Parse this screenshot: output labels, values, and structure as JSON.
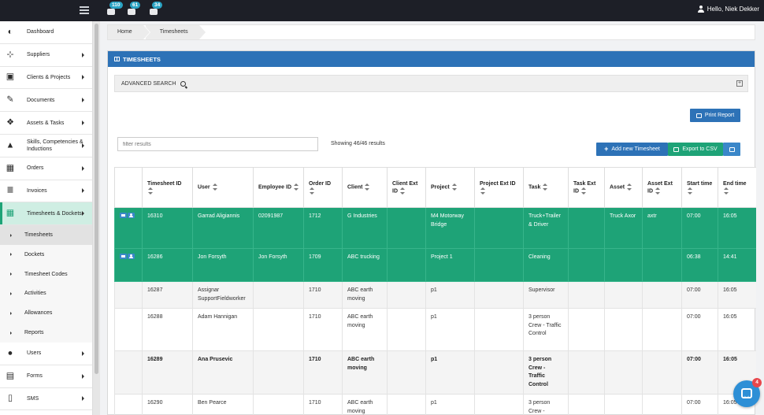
{
  "topbar": {
    "notifications": [
      {
        "icon": "users-icon",
        "count": "110"
      },
      {
        "icon": "cubes-icon",
        "count": "61"
      },
      {
        "icon": "envelope-icon",
        "count": "34"
      }
    ],
    "greeting": "Hello, Niek Dekker"
  },
  "sidebar": {
    "items": [
      {
        "label": "Dashboard",
        "icon": "dashboard-icon",
        "glyph": "◐"
      },
      {
        "label": "Suppliers",
        "icon": "sitemap-icon",
        "glyph": "⊹"
      },
      {
        "label": "Clients & Projects",
        "icon": "briefcase-icon",
        "glyph": "▣"
      },
      {
        "label": "Documents",
        "icon": "paperclip-icon",
        "glyph": "✎"
      },
      {
        "label": "Assets & Tasks",
        "icon": "cubes-icon",
        "glyph": "❖"
      },
      {
        "label": "Skills, Competencies & Inductions",
        "icon": "graduation-cap-icon",
        "glyph": "▲"
      },
      {
        "label": "Orders",
        "icon": "calendar-icon",
        "glyph": "▦"
      },
      {
        "label": "Invoices",
        "icon": "list-icon",
        "glyph": "≣"
      },
      {
        "label": "Timesheets & Dockets",
        "icon": "table-icon",
        "glyph": "▦"
      }
    ],
    "sub_items": [
      {
        "label": "Timesheets"
      },
      {
        "label": "Dockets"
      },
      {
        "label": "Timesheet Codes"
      },
      {
        "label": "Activities"
      },
      {
        "label": "Allowances"
      },
      {
        "label": "Reports"
      }
    ],
    "bottom_items": [
      {
        "label": "Users",
        "icon": "users-icon",
        "glyph": "●"
      },
      {
        "label": "Forms",
        "icon": "file-icon",
        "glyph": "▤"
      },
      {
        "label": "SMS",
        "icon": "mobile-icon",
        "glyph": "▯"
      }
    ]
  },
  "breadcrumb": [
    "Home",
    "Timesheets"
  ],
  "panel": {
    "title": "TIMESHEETS",
    "advanced_search": "ADVANCED SEARCH",
    "print_label": "Print Report",
    "add_label": "Add new Timesheet",
    "csv_label": "Export to CSV",
    "filter_placeholder": "filter results",
    "showing": "Showing 46/46 results"
  },
  "table": {
    "headers": [
      "",
      "Timesheet ID",
      "User",
      "Employee ID",
      "Order ID",
      "Client",
      "Client Ext ID",
      "Project",
      "Project Ext ID",
      "Task",
      "Task Ext ID",
      "Asset",
      "Asset Ext ID",
      "Start time",
      "End time"
    ],
    "rows": [
      {
        "id": "16310",
        "user": "Garrad Aligiannis",
        "employee_id": "02091987",
        "order_id": "1712",
        "client": "G Industries",
        "client_ext": "",
        "project": "M4 Motorway Bridge",
        "project_ext": "",
        "task": "Truck+Trailer & Driver",
        "task_ext": "",
        "asset": "Truck Axor",
        "asset_ext": "axtr",
        "start": "07:00",
        "end": "16:05"
      },
      {
        "id": "16286",
        "user": "Jon Forsyth",
        "employee_id": "Jon Forsyth",
        "order_id": "1709",
        "client": "ABC trucking",
        "client_ext": "",
        "project": "Project 1",
        "project_ext": "",
        "task": "Cleaning",
        "task_ext": "",
        "asset": "",
        "asset_ext": "",
        "start": "06:38",
        "end": "14:41"
      },
      {
        "id": "16287",
        "user": "Assignar SupportFieldworker",
        "employee_id": "",
        "order_id": "1710",
        "client": "ABC earth moving",
        "client_ext": "",
        "project": "p1",
        "project_ext": "",
        "task": "Supervisor",
        "task_ext": "",
        "asset": "",
        "asset_ext": "",
        "start": "07:00",
        "end": "16:05"
      },
      {
        "id": "16288",
        "user": "Adam Hannigan",
        "employee_id": "",
        "order_id": "1710",
        "client": "ABC earth moving",
        "client_ext": "",
        "project": "p1",
        "project_ext": "",
        "task": "3 person Crew - Traffic Control",
        "task_ext": "",
        "asset": "",
        "asset_ext": "",
        "start": "07:00",
        "end": "16:05"
      },
      {
        "id": "16289",
        "user": "Ana Prusevic",
        "employee_id": "",
        "order_id": "1710",
        "client": "ABC earth moving",
        "client_ext": "",
        "project": "p1",
        "project_ext": "",
        "task": "3 person Crew - Traffic Control",
        "task_ext": "",
        "asset": "",
        "asset_ext": "",
        "start": "07:00",
        "end": "16:05"
      },
      {
        "id": "16290",
        "user": "Ben Pearce",
        "employee_id": "",
        "order_id": "1710",
        "client": "ABC earth moving",
        "client_ext": "",
        "project": "p1",
        "project_ext": "",
        "task": "3 person Crew -",
        "task_ext": "",
        "asset": "",
        "asset_ext": "",
        "start": "07:00",
        "end": "16:05"
      }
    ]
  },
  "chat": {
    "badge": "4"
  },
  "colors": {
    "accent_green": "#1ea377",
    "primary_blue": "#2d72b7",
    "topbar": "#1d1f27"
  }
}
